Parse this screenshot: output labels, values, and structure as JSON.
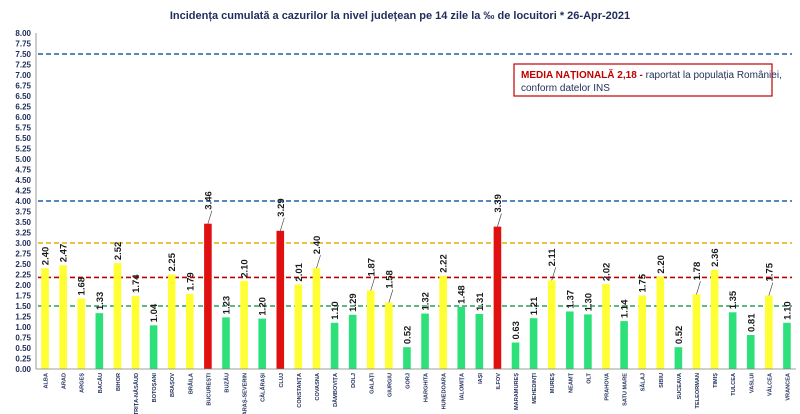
{
  "chart_data": {
    "type": "bar",
    "title": "Incidența cumulată a cazurilor la nivel județean pe 14 zile la ‰ de locuitori *   26-Apr-2021",
    "categories": [
      "ALBA",
      "ARAD",
      "ARGEȘ",
      "BACĂU",
      "BIHOR",
      "BISTRIȚA-NĂSĂUD",
      "BOTOȘANI",
      "BRAȘOV",
      "BRĂILA",
      "BUCUREȘTI",
      "BUZĂU",
      "CARAȘ-SEVERIN",
      "CĂLĂRAȘI",
      "CLUJ",
      "CONSTANȚA",
      "COVASNA",
      "DÂMBOVIȚA",
      "DOLJ",
      "GALAȚI",
      "GIURGIU",
      "GORJ",
      "HARGHITA",
      "HUNEDOARA",
      "IALOMIȚA",
      "IAȘI",
      "ILFOV",
      "MARAMUREȘ",
      "MEHEDINȚI",
      "MUREȘ",
      "NEAMȚ",
      "OLT",
      "PRAHOVA",
      "SATU MARE",
      "SĂLAJ",
      "SIBIU",
      "SUCEAVA",
      "TELEORMAN",
      "TIMIȘ",
      "TULCEA",
      "VASLUI",
      "VÂLCEA",
      "VRANCEA"
    ],
    "values": [
      2.4,
      2.47,
      1.68,
      1.33,
      2.52,
      1.74,
      1.04,
      2.25,
      1.79,
      3.46,
      1.23,
      2.1,
      1.2,
      3.29,
      2.01,
      2.4,
      1.1,
      1.29,
      1.87,
      1.58,
      0.52,
      1.32,
      2.22,
      1.48,
      1.31,
      3.39,
      0.63,
      1.21,
      2.11,
      1.37,
      1.3,
      2.02,
      1.14,
      1.75,
      2.2,
      0.52,
      1.78,
      2.36,
      1.35,
      0.81,
      1.75,
      1.1
    ],
    "value_labels": [
      "2.40",
      "2.47",
      "1.68",
      "1.33",
      "2.52",
      "1.74",
      "1.04",
      "2.25",
      "1.79",
      "3.46",
      "1.23",
      "2.10",
      "1.20",
      "3.29",
      "2.01",
      "2.40",
      "1.10",
      "1.29",
      "1.87",
      "1.58",
      "0.52",
      "1.32",
      "2.22",
      "1.48",
      "1.31",
      "3.39",
      "0.63",
      "1.21",
      "2.11",
      "1.37",
      "1.30",
      "2.02",
      "1.14",
      "1.75",
      "2.20",
      "0.52",
      "1.78",
      "2.36",
      "1.35",
      "0.81",
      "1.75",
      "1.10"
    ],
    "ylim": [
      0,
      8
    ],
    "ytick_step": 0.25,
    "yticks": [
      "0.00",
      "0.25",
      "0.50",
      "0.75",
      "1.00",
      "1.25",
      "1.50",
      "1.75",
      "2.00",
      "2.25",
      "2.50",
      "2.75",
      "3.00",
      "3.25",
      "3.50",
      "3.75",
      "4.00",
      "4.25",
      "4.50",
      "4.75",
      "5.00",
      "5.25",
      "5.50",
      "5.75",
      "6.00",
      "6.25",
      "6.50",
      "6.75",
      "7.00",
      "7.25",
      "7.50",
      "7.75",
      "8.00"
    ],
    "reference_lines": [
      {
        "value": 1.5,
        "color": "#2e9e5a"
      },
      {
        "value": 2.18,
        "color": "#c00000"
      },
      {
        "value": 3.0,
        "color": "#e0b000"
      },
      {
        "value": 4.0,
        "color": "#1f5fa8"
      },
      {
        "value": 7.5,
        "color": "#1f5fa8"
      }
    ],
    "bar_colors": {
      "low": "#2ee07a",
      "medium": "#ffff33",
      "high": "#e01010"
    },
    "thresholds": {
      "low_max": 1.5,
      "high_min": 3.0
    },
    "callout_categories": [
      "BUCUREȘTI",
      "CLUJ",
      "COVASNA",
      "GALAȚI",
      "GIURGIU",
      "ILFOV",
      "MUREȘ",
      "TELEORMAN",
      "VÂLCEA"
    ],
    "annotation": {
      "bold_text": "MEDIA NAȚIONALĂ  2,18 -",
      "text_line1": " raportat la populația României,",
      "text_line2": "conform datelor INS",
      "border_color": "#c00000"
    }
  }
}
